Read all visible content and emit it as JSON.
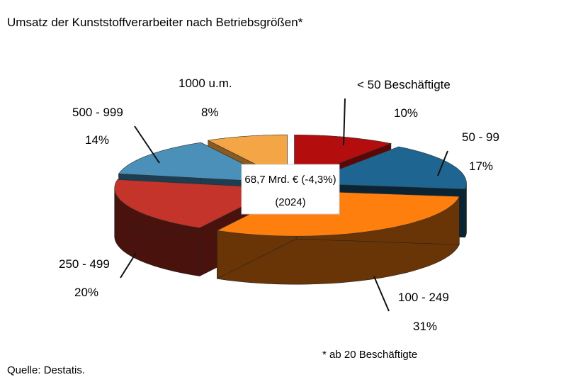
{
  "chart_data": {
    "type": "pie",
    "title": "Umsatz der Kunststoffverarbeiter nach Betriebsgrößen*",
    "style": "3d-exploded",
    "center_label": "68,7 Mrd. € (-4,3%)",
    "center_sublabel": "(2024)",
    "slices": [
      {
        "label": "< 50 Beschäftigte",
        "value": 10,
        "value_label": "10%",
        "top_color": "#b30d0d",
        "side_color": "#5c0606"
      },
      {
        "label": "50 -  99",
        "value": 17,
        "value_label": "17%",
        "top_color": "#1f6591",
        "side_color": "#0b2433"
      },
      {
        "label": "100 - 249",
        "value": 31,
        "value_label": "31%",
        "top_color": "#ff7f0e",
        "side_color": "#6a3506"
      },
      {
        "label": "250 - 499",
        "value": 20,
        "value_label": "20%",
        "top_color": "#c4342b",
        "side_color": "#4a120d"
      },
      {
        "label": "500 - 999",
        "value": 14,
        "value_label": "14%",
        "top_color": "#4a90b8",
        "side_color": "#1d3e52"
      },
      {
        "label": "1000 u.m.",
        "value": 8,
        "value_label": "8%",
        "top_color": "#f4a545",
        "side_color": "#8a5a1e"
      }
    ]
  },
  "footnote": "* ab 20 Beschäftigte",
  "source": "Quelle: Destatis."
}
